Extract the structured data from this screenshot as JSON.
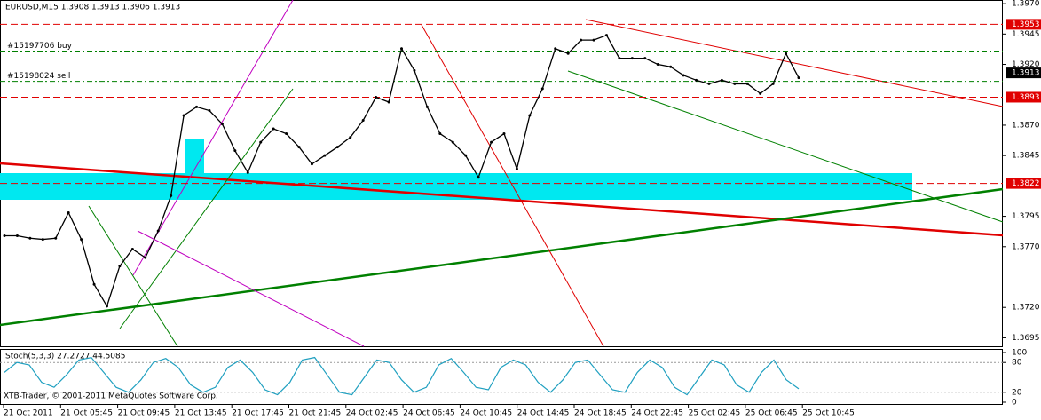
{
  "chart_data": {
    "type": "line",
    "title": "EURUSD,M15  1.3908 1.3913 1.3906 1.3913",
    "footer": "XTB-Trader, © 2001-2011 MetaQuotes Software Corp.",
    "color": "#000000",
    "values": [
      1.3779,
      1.3779,
      1.3777,
      1.3776,
      1.3777,
      1.3798,
      1.3776,
      1.3739,
      1.3721,
      1.3754,
      1.3768,
      1.3761,
      1.3783,
      1.3812,
      1.3878,
      1.3885,
      1.3882,
      1.3871,
      1.3849,
      1.3831,
      1.3856,
      1.3867,
      1.3863,
      1.3852,
      1.3838,
      1.3845,
      1.3852,
      1.386,
      1.3874,
      1.3893,
      1.3889,
      1.3933,
      1.3915,
      1.3885,
      1.3863,
      1.3856,
      1.3845,
      1.3827,
      1.3856,
      1.3863,
      1.3834,
      1.3878,
      1.39,
      1.3933,
      1.3929,
      1.394,
      1.394,
      1.3944,
      1.3925,
      1.3925,
      1.3925,
      1.392,
      1.3918,
      1.3911,
      1.3907,
      1.3904,
      1.3907,
      1.3904,
      1.3904,
      1.3896,
      1.3904,
      1.3929,
      1.3909
    ],
    "ylim": [
      1.3688,
      1.3973
    ],
    "yticks": [
      {
        "value": 1.397,
        "label": "1.3970"
      },
      {
        "value": 1.3945,
        "label": "1.3945"
      },
      {
        "value": 1.392,
        "label": "1.3920"
      },
      {
        "value": 1.387,
        "label": "1.3870"
      },
      {
        "value": 1.3845,
        "label": "1.3845"
      },
      {
        "value": 1.3795,
        "label": "1.3795"
      },
      {
        "value": 1.377,
        "label": "1.3770"
      },
      {
        "value": 1.372,
        "label": "1.3720"
      },
      {
        "value": 1.3695,
        "label": "1.3695"
      }
    ],
    "price_tags": [
      {
        "value": 1.3953,
        "label": "1.3953",
        "color": "#e00000"
      },
      {
        "value": 1.3913,
        "label": "1.3913",
        "color": "#000000"
      },
      {
        "value": 1.3893,
        "label": "1.3893",
        "color": "#e00000"
      },
      {
        "value": 1.3822,
        "label": "1.3822",
        "color": "#e00000"
      }
    ],
    "orders": [
      {
        "label": "#15197706 buy",
        "value": 1.3931
      },
      {
        "label": "#15198024 sell",
        "value": 1.3906
      }
    ],
    "xticks": [
      "21 Oct 2011",
      "21 Oct 05:45",
      "21 Oct 09:45",
      "21 Oct 13:45",
      "21 Oct 17:45",
      "21 Oct 21:45",
      "24 Oct 02:45",
      "24 Oct 06:45",
      "24 Oct 10:45",
      "24 Oct 14:45",
      "24 Oct 18:45",
      "24 Oct 22:45",
      "25 Oct 02:45",
      "25 Oct 06:45",
      "25 Oct 10:45"
    ],
    "stoch": {
      "title": "Stoch(5,3,3) 27.2727 44.5085",
      "color": "#20a0c0",
      "ylim": [
        0,
        100
      ],
      "yticks": [
        100,
        80,
        20,
        0
      ],
      "values": [
        60,
        80,
        75,
        40,
        30,
        55,
        85,
        90,
        60,
        30,
        20,
        45,
        80,
        88,
        70,
        35,
        20,
        30,
        70,
        85,
        60,
        25,
        15,
        40,
        85,
        90,
        55,
        20,
        15,
        50,
        85,
        80,
        45,
        20,
        30,
        75,
        88,
        60,
        30,
        25,
        70,
        85,
        75,
        40,
        20,
        45,
        80,
        85,
        55,
        25,
        20,
        60,
        85,
        70,
        30,
        15,
        50,
        85,
        75,
        35,
        20,
        60,
        85,
        45,
        27
      ]
    }
  }
}
